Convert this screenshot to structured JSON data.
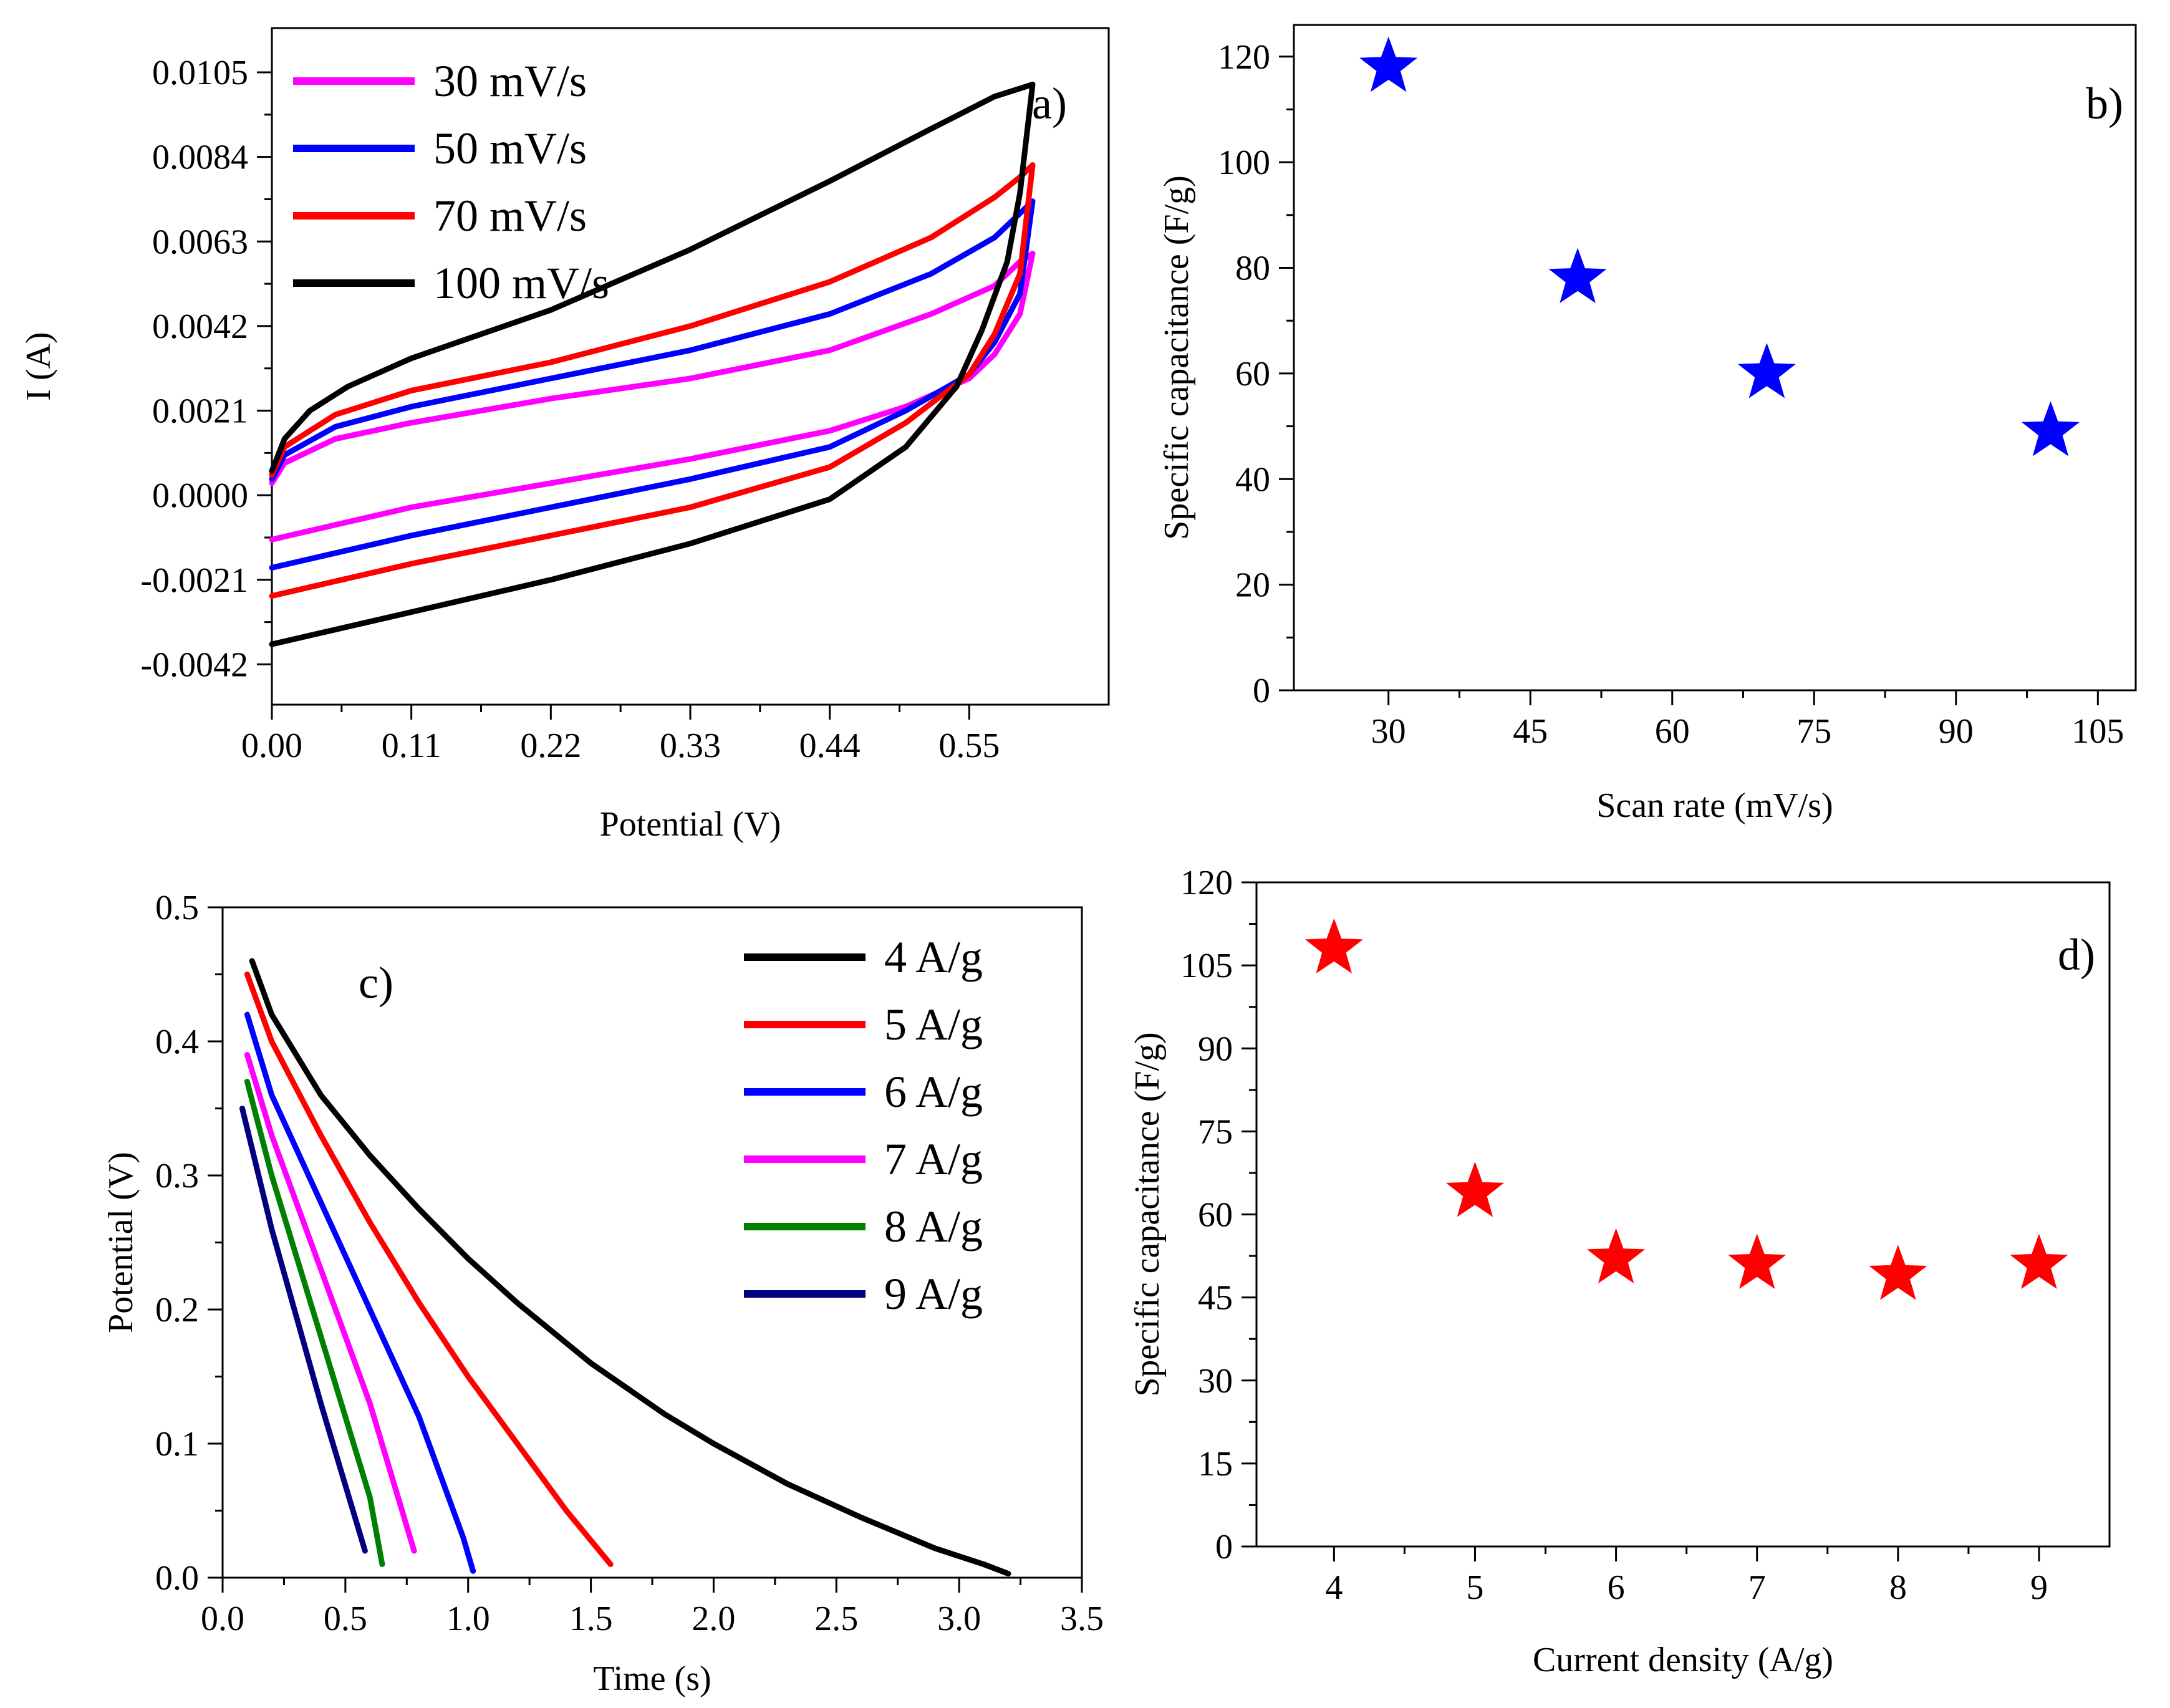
{
  "colors": {
    "magenta": "#ff00ff",
    "blue": "#0000ff",
    "red": "#ff0000",
    "black": "#000000",
    "green": "#008000",
    "navy": "#000080",
    "star_blue": "#0000ff",
    "star_red": "#ff0000"
  },
  "chart_data": [
    {
      "panel": "a)",
      "type": "line",
      "title": "",
      "xlabel": "Potential (V)",
      "ylabel": "I (A)",
      "xlim": [
        0,
        0.66
      ],
      "ylim": [
        -0.0052,
        0.0116
      ],
      "xticks": [
        0.0,
        0.11,
        0.22,
        0.33,
        0.44,
        0.55
      ],
      "xtick_labels": [
        "0.00",
        "0.11",
        "0.22",
        "0.33",
        "0.44",
        "0.55"
      ],
      "yticks": [
        -0.0042,
        -0.0021,
        0.0,
        0.0021,
        0.0042,
        0.0063,
        0.0084,
        0.0105
      ],
      "ytick_labels": [
        "-0.0042",
        "-0.0021",
        "0.0000",
        "0.0021",
        "0.0042",
        "0.0063",
        "0.0084",
        "0.0105"
      ],
      "legend_position": "top-left",
      "series": [
        {
          "name": "30 mV/s",
          "color": "#ff00ff",
          "upper": [
            [
              0.0,
              0.0003
            ],
            [
              0.01,
              0.0008
            ],
            [
              0.05,
              0.0014
            ],
            [
              0.11,
              0.0018
            ],
            [
              0.22,
              0.0024
            ],
            [
              0.33,
              0.0029
            ],
            [
              0.44,
              0.0036
            ],
            [
              0.52,
              0.0045
            ],
            [
              0.57,
              0.0052
            ],
            [
              0.59,
              0.0058
            ],
            [
              0.6,
              0.006
            ]
          ],
          "lower": [
            [
              0.6,
              0.006
            ],
            [
              0.59,
              0.0045
            ],
            [
              0.57,
              0.0035
            ],
            [
              0.55,
              0.0029
            ],
            [
              0.5,
              0.0022
            ],
            [
              0.44,
              0.0016
            ],
            [
              0.33,
              0.0009
            ],
            [
              0.22,
              0.0003
            ],
            [
              0.11,
              -0.0003
            ],
            [
              0.0,
              -0.0011
            ]
          ]
        },
        {
          "name": "50 mV/s",
          "color": "#0000ff",
          "upper": [
            [
              0.0,
              0.0004
            ],
            [
              0.01,
              0.001
            ],
            [
              0.05,
              0.0017
            ],
            [
              0.11,
              0.0022
            ],
            [
              0.22,
              0.0029
            ],
            [
              0.33,
              0.0036
            ],
            [
              0.44,
              0.0045
            ],
            [
              0.52,
              0.0055
            ],
            [
              0.57,
              0.0064
            ],
            [
              0.59,
              0.007
            ],
            [
              0.6,
              0.0073
            ]
          ],
          "lower": [
            [
              0.6,
              0.0073
            ],
            [
              0.59,
              0.005
            ],
            [
              0.57,
              0.0038
            ],
            [
              0.55,
              0.003
            ],
            [
              0.5,
              0.0021
            ],
            [
              0.44,
              0.0012
            ],
            [
              0.33,
              0.0004
            ],
            [
              0.22,
              -0.0003
            ],
            [
              0.11,
              -0.001
            ],
            [
              0.0,
              -0.0018
            ]
          ]
        },
        {
          "name": "70 mV/s",
          "color": "#ff0000",
          "upper": [
            [
              0.0,
              0.0005
            ],
            [
              0.01,
              0.0012
            ],
            [
              0.05,
              0.002
            ],
            [
              0.11,
              0.0026
            ],
            [
              0.22,
              0.0033
            ],
            [
              0.33,
              0.0042
            ],
            [
              0.44,
              0.0053
            ],
            [
              0.52,
              0.0064
            ],
            [
              0.57,
              0.0074
            ],
            [
              0.59,
              0.0079
            ],
            [
              0.6,
              0.0082
            ]
          ],
          "lower": [
            [
              0.6,
              0.0082
            ],
            [
              0.59,
              0.0055
            ],
            [
              0.57,
              0.004
            ],
            [
              0.55,
              0.003
            ],
            [
              0.5,
              0.0018
            ],
            [
              0.44,
              0.0007
            ],
            [
              0.33,
              -0.0003
            ],
            [
              0.22,
              -0.001
            ],
            [
              0.11,
              -0.0017
            ],
            [
              0.0,
              -0.0025
            ]
          ]
        },
        {
          "name": "100 mV/s",
          "color": "#000000",
          "upper": [
            [
              0.0,
              0.0006
            ],
            [
              0.01,
              0.0014
            ],
            [
              0.03,
              0.0021
            ],
            [
              0.06,
              0.0027
            ],
            [
              0.11,
              0.0034
            ],
            [
              0.22,
              0.0046
            ],
            [
              0.33,
              0.0061
            ],
            [
              0.44,
              0.0078
            ],
            [
              0.52,
              0.0091
            ],
            [
              0.57,
              0.0099
            ],
            [
              0.6,
              0.0102
            ]
          ],
          "lower": [
            [
              0.6,
              0.0102
            ],
            [
              0.59,
              0.0075
            ],
            [
              0.58,
              0.0058
            ],
            [
              0.56,
              0.0041
            ],
            [
              0.54,
              0.0027
            ],
            [
              0.5,
              0.0012
            ],
            [
              0.44,
              -0.0001
            ],
            [
              0.33,
              -0.0012
            ],
            [
              0.22,
              -0.0021
            ],
            [
              0.11,
              -0.0029
            ],
            [
              0.0,
              -0.0037
            ]
          ]
        }
      ]
    },
    {
      "panel": "b)",
      "type": "scatter",
      "title": "",
      "xlabel": "Scan rate (mV/s)",
      "ylabel": "Specific capacitance (F/g)",
      "xlim": [
        20,
        109
      ],
      "ylim": [
        0,
        126
      ],
      "xticks": [
        30,
        45,
        60,
        75,
        90,
        105
      ],
      "yticks": [
        0,
        20,
        40,
        60,
        80,
        100,
        120
      ],
      "marker": "star",
      "series": [
        {
          "name": "capacitance",
          "color": "#0000ff",
          "x": [
            30,
            50,
            70,
            100
          ],
          "y": [
            118,
            78,
            60,
            49
          ]
        }
      ]
    },
    {
      "panel": "c)",
      "type": "line",
      "title": "",
      "xlabel": "Time (s)",
      "ylabel": "Potential (V)",
      "xlim": [
        0,
        3.5
      ],
      "ylim": [
        0,
        0.5
      ],
      "xticks": [
        0.0,
        0.5,
        1.0,
        1.5,
        2.0,
        2.5,
        3.0,
        3.5
      ],
      "xtick_labels": [
        "0.0",
        "0.5",
        "1.0",
        "1.5",
        "2.0",
        "2.5",
        "3.0",
        "3.5"
      ],
      "yticks": [
        0.0,
        0.1,
        0.2,
        0.3,
        0.4,
        0.5
      ],
      "ytick_labels": [
        "0.0",
        "0.1",
        "0.2",
        "0.3",
        "0.4",
        "0.5"
      ],
      "legend_position": "top-right",
      "series": [
        {
          "name": "4 A/g",
          "color": "#000000",
          "x": [
            0.12,
            0.2,
            0.4,
            0.6,
            0.8,
            1.0,
            1.2,
            1.5,
            1.8,
            2.0,
            2.3,
            2.6,
            2.9,
            3.1,
            3.2
          ],
          "y": [
            0.46,
            0.42,
            0.36,
            0.315,
            0.275,
            0.238,
            0.205,
            0.16,
            0.122,
            0.1,
            0.07,
            0.045,
            0.022,
            0.01,
            0.003
          ]
        },
        {
          "name": "5 A/g",
          "color": "#ff0000",
          "x": [
            0.1,
            0.2,
            0.4,
            0.6,
            0.8,
            1.0,
            1.2,
            1.4,
            1.58
          ],
          "y": [
            0.45,
            0.4,
            0.33,
            0.265,
            0.205,
            0.15,
            0.1,
            0.05,
            0.01
          ]
        },
        {
          "name": "6 A/g",
          "color": "#0000ff",
          "x": [
            0.1,
            0.2,
            0.4,
            0.6,
            0.8,
            0.98,
            1.02
          ],
          "y": [
            0.42,
            0.36,
            0.28,
            0.2,
            0.12,
            0.03,
            0.005
          ]
        },
        {
          "name": "7 A/g",
          "color": "#ff00ff",
          "x": [
            0.1,
            0.2,
            0.4,
            0.6,
            0.78
          ],
          "y": [
            0.39,
            0.33,
            0.23,
            0.13,
            0.02
          ]
        },
        {
          "name": "8 A/g",
          "color": "#008000",
          "x": [
            0.1,
            0.2,
            0.4,
            0.6,
            0.65
          ],
          "y": [
            0.37,
            0.3,
            0.18,
            0.06,
            0.01
          ]
        },
        {
          "name": "9 A/g",
          "color": "#000080",
          "x": [
            0.08,
            0.2,
            0.4,
            0.58
          ],
          "y": [
            0.35,
            0.26,
            0.13,
            0.02
          ]
        }
      ]
    },
    {
      "panel": "d)",
      "type": "scatter",
      "title": "",
      "xlabel": "Current density (A/g)",
      "ylabel": "Specific capacitance (F/g)",
      "xlim": [
        3.45,
        9.5
      ],
      "ylim": [
        0,
        120
      ],
      "xticks": [
        4,
        5,
        6,
        7,
        8,
        9
      ],
      "yticks": [
        0,
        15,
        30,
        45,
        60,
        75,
        90,
        105,
        120
      ],
      "marker": "star",
      "series": [
        {
          "name": "capacitance",
          "color": "#ff0000",
          "x": [
            4,
            5,
            6,
            7,
            8,
            9
          ],
          "y": [
            108,
            64,
            52,
            51,
            49,
            51
          ]
        }
      ]
    }
  ]
}
